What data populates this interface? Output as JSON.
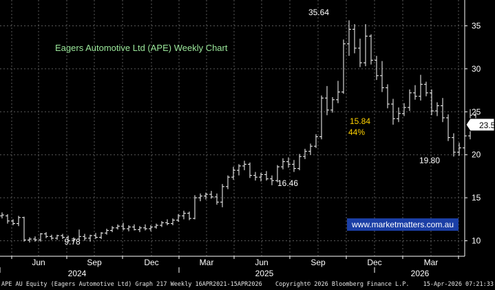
{
  "chart_data": {
    "type": "line",
    "style": "ohlc-bar",
    "title": "Eagers Automotive Ltd (APE) Weekly Chart",
    "y_axis": {
      "position": "right",
      "ylim": [
        8.2,
        38.0
      ],
      "ticks": [
        10,
        15,
        20,
        25,
        30,
        35
      ]
    },
    "x_axis": {
      "months": [
        {
          "label": "Jun"
        },
        {
          "label": "Sep"
        },
        {
          "label": "Dec"
        },
        {
          "label": "Mar"
        },
        {
          "label": "Jun"
        },
        {
          "label": "Sep"
        },
        {
          "label": "Dec"
        },
        {
          "label": "Mar"
        }
      ],
      "years": [
        {
          "label": "2024"
        },
        {
          "label": "2025"
        },
        {
          "label": "2026"
        }
      ]
    },
    "grid": true,
    "series": [
      {
        "values": [
          [
            12.9,
            13.3,
            12.6,
            13.0
          ],
          [
            12.9,
            13.1,
            12.0,
            12.3
          ],
          [
            12.3,
            12.5,
            11.8,
            12.0
          ],
          [
            12.0,
            12.9,
            11.7,
            12.7
          ],
          [
            12.7,
            12.8,
            9.9,
            10.1
          ],
          [
            10.1,
            10.4,
            9.8,
            10.2
          ],
          [
            10.2,
            10.5,
            9.9,
            10.1
          ],
          [
            10.1,
            10.9,
            9.9,
            10.8
          ],
          [
            10.8,
            11.0,
            10.3,
            10.5
          ],
          [
            10.5,
            10.7,
            10.1,
            10.3
          ],
          [
            10.3,
            10.7,
            10.1,
            10.6
          ],
          [
            10.6,
            10.8,
            10.2,
            10.4
          ],
          [
            10.4,
            10.6,
            9.9,
            10.0
          ],
          [
            10.0,
            10.4,
            9.78,
            10.2
          ],
          [
            10.2,
            11.3,
            10.0,
            10.5
          ],
          [
            10.5,
            10.8,
            10.0,
            10.3
          ],
          [
            10.3,
            10.7,
            9.9,
            10.6
          ],
          [
            10.6,
            10.9,
            10.2,
            10.4
          ],
          [
            10.4,
            11.0,
            10.2,
            10.9
          ],
          [
            10.9,
            11.4,
            10.7,
            11.2
          ],
          [
            11.2,
            11.7,
            11.0,
            11.5
          ],
          [
            11.5,
            11.9,
            11.3,
            11.7
          ],
          [
            11.7,
            12.1,
            11.2,
            11.4
          ],
          [
            11.4,
            11.8,
            11.1,
            11.6
          ],
          [
            11.6,
            11.9,
            11.2,
            11.3
          ],
          [
            11.3,
            11.7,
            11.0,
            11.5
          ],
          [
            11.5,
            11.9,
            11.2,
            11.4
          ],
          [
            11.4,
            11.8,
            11.1,
            11.6
          ],
          [
            11.6,
            12.0,
            11.4,
            11.8
          ],
          [
            11.8,
            12.3,
            11.6,
            12.1
          ],
          [
            12.1,
            12.5,
            11.8,
            12.0
          ],
          [
            12.0,
            12.6,
            11.8,
            12.4
          ],
          [
            12.4,
            13.1,
            12.2,
            12.9
          ],
          [
            12.9,
            13.5,
            12.5,
            13.2
          ],
          [
            13.2,
            13.4,
            12.4,
            12.6
          ],
          [
            12.6,
            15.3,
            12.5,
            15.0
          ],
          [
            15.0,
            15.5,
            14.6,
            15.2
          ],
          [
            15.2,
            15.6,
            14.8,
            15.4
          ],
          [
            15.4,
            15.8,
            14.9,
            15.1
          ],
          [
            15.1,
            15.5,
            14.2,
            14.5
          ],
          [
            14.5,
            16.6,
            13.9,
            16.3
          ],
          [
            16.3,
            17.6,
            16.0,
            17.4
          ],
          [
            17.4,
            18.6,
            17.1,
            18.2
          ],
          [
            18.2,
            18.9,
            17.6,
            18.7
          ],
          [
            18.7,
            19.3,
            18.2,
            18.9
          ],
          [
            18.9,
            19.1,
            17.3,
            17.6
          ],
          [
            17.6,
            18.0,
            17.0,
            17.4
          ],
          [
            17.4,
            17.9,
            16.9,
            17.7
          ],
          [
            17.7,
            18.1,
            17.0,
            17.2
          ],
          [
            17.2,
            17.6,
            16.46,
            17.0
          ],
          [
            17.0,
            18.8,
            16.8,
            18.6
          ],
          [
            18.6,
            19.6,
            18.3,
            19.2
          ],
          [
            19.2,
            19.7,
            18.5,
            18.9
          ],
          [
            18.9,
            19.4,
            18.0,
            18.4
          ],
          [
            18.4,
            20.1,
            18.2,
            19.8
          ],
          [
            19.8,
            20.7,
            19.5,
            20.4
          ],
          [
            20.4,
            21.3,
            20.0,
            21.0
          ],
          [
            21.0,
            22.4,
            20.8,
            22.1
          ],
          [
            22.1,
            26.9,
            21.8,
            26.6
          ],
          [
            26.6,
            28.0,
            24.6,
            25.2
          ],
          [
            25.2,
            26.7,
            24.9,
            26.4
          ],
          [
            26.4,
            28.6,
            26.0,
            27.3
          ],
          [
            27.3,
            33.4,
            27.1,
            32.9
          ],
          [
            32.9,
            35.64,
            31.5,
            34.6
          ],
          [
            34.6,
            35.2,
            31.8,
            32.4
          ],
          [
            32.4,
            33.5,
            30.2,
            30.7
          ],
          [
            30.7,
            35.2,
            30.3,
            33.8
          ],
          [
            33.8,
            34.0,
            30.5,
            31.0
          ],
          [
            31.0,
            31.5,
            28.7,
            29.2
          ],
          [
            29.2,
            30.9,
            27.3,
            27.8
          ],
          [
            27.8,
            28.2,
            25.4,
            25.9
          ],
          [
            25.9,
            26.5,
            23.5,
            24.2
          ],
          [
            24.2,
            25.5,
            23.8,
            24.8
          ],
          [
            24.8,
            26.0,
            24.5,
            25.5
          ],
          [
            25.5,
            27.6,
            25.1,
            27.2
          ],
          [
            27.2,
            28.1,
            26.4,
            26.8
          ],
          [
            26.8,
            29.3,
            26.3,
            28.2
          ],
          [
            28.2,
            28.5,
            26.8,
            27.2
          ],
          [
            27.2,
            27.6,
            24.6,
            25.1
          ],
          [
            25.1,
            26.1,
            24.5,
            25.7
          ],
          [
            25.7,
            26.6,
            23.8,
            24.3
          ],
          [
            24.3,
            24.7,
            21.6,
            22.0
          ],
          [
            22.0,
            22.5,
            19.8,
            20.3
          ],
          [
            20.3,
            21.4,
            19.9,
            20.8
          ],
          [
            20.8,
            22.7,
            20.3,
            22.2
          ],
          [
            22.2,
            25.3,
            21.8,
            24.6
          ],
          [
            24.6,
            25.0,
            22.8,
            23.2
          ],
          [
            23.2,
            24.1,
            22.9,
            23.5
          ]
        ]
      }
    ],
    "last_price": "23.50",
    "annotations": [
      {
        "text": "35.64",
        "color": "#ffffff"
      },
      {
        "text": "16.46",
        "color": "#ffffff"
      },
      {
        "text": "9.78",
        "color": "#ffffff"
      },
      {
        "text": "19.80",
        "color": "#ffffff"
      },
      {
        "text": "15.84",
        "color": "#ffd200"
      },
      {
        "text": "44%",
        "color": "#ffd200"
      }
    ],
    "watermark": "www.marketmatters.com.au"
  },
  "colors": {
    "background": "#000000",
    "grid": "#5a5a5a",
    "bars": "#ffffff",
    "title": "#9be89b",
    "highlight": "#ffd200",
    "watermark_bg": "#1b3fa6"
  },
  "footer": {
    "left": "APE AU Equity (Eagers Automotive Ltd) Graph 217 Weekly 16APR2021-15APR2026",
    "center": "Copyright© 2026 Bloomberg Finance L.P.",
    "right": "15-Apr-2026 07:21:33"
  }
}
